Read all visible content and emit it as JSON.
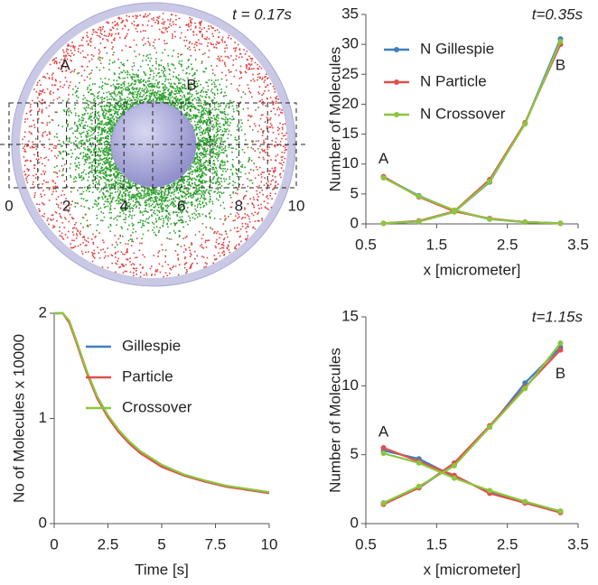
{
  "snapshot": {
    "title": "t = 0.17s",
    "labels": [
      "A",
      "B"
    ],
    "ticks": [
      0,
      2,
      4,
      6,
      8,
      10
    ]
  },
  "chart_data": [
    {
      "type": "line",
      "title": "t=0.35s",
      "xlabel": "x [micrometer]",
      "ylabel": "Number of Molecules",
      "x": [
        0.75,
        1.25,
        1.75,
        2.25,
        2.75,
        3.25
      ],
      "xlim": [
        0.5,
        3.5
      ],
      "xticks": [
        0.5,
        1.5,
        2.5,
        3.5
      ],
      "ylim": [
        0,
        35
      ],
      "yticks": [
        0,
        5,
        10,
        15,
        20,
        25,
        30,
        35
      ],
      "legend": "upper-left",
      "markers": true,
      "annotations": [
        "A",
        "B"
      ],
      "series": [
        {
          "name": "N Gillespie",
          "color": "#3f7fc0",
          "values": [
            7.8,
            4.7,
            2.2,
            0.8,
            0.3,
            0.1
          ],
          "values_b": [
            0.1,
            0.4,
            2.0,
            7.0,
            16.8,
            30.9
          ]
        },
        {
          "name": "N Particle",
          "color": "#e0504a",
          "values": [
            7.9,
            4.5,
            2.1,
            0.9,
            0.3,
            0.1
          ],
          "values_b": [
            0.1,
            0.5,
            2.1,
            7.4,
            16.9,
            30.0
          ]
        },
        {
          "name": "N Crossover",
          "color": "#8cc63f",
          "values": [
            7.7,
            4.6,
            2.3,
            0.8,
            0.3,
            0.1
          ],
          "values_b": [
            0.1,
            0.4,
            2.0,
            7.1,
            16.7,
            30.5
          ]
        }
      ]
    },
    {
      "type": "line",
      "xlabel": "Time [s]",
      "ylabel": "No of Molecules x 10000",
      "x": [
        0,
        0.4,
        0.7,
        1,
        1.5,
        2,
        2.5,
        3,
        3.5,
        4,
        5,
        6,
        7,
        8,
        9,
        10
      ],
      "xlim": [
        0,
        10
      ],
      "xticks": [
        0,
        2.5,
        5,
        7.5,
        10
      ],
      "ylim": [
        0,
        2
      ],
      "yticks": [
        0,
        1,
        2
      ],
      "legend": "center",
      "markers": false,
      "series": [
        {
          "name": "Gillespie",
          "color": "#3f7fc0",
          "values": [
            2.0,
            2.0,
            1.92,
            1.75,
            1.45,
            1.2,
            1.02,
            0.88,
            0.77,
            0.68,
            0.55,
            0.46,
            0.4,
            0.36,
            0.32,
            0.29
          ]
        },
        {
          "name": "Particle",
          "color": "#e0504a",
          "values": [
            2.0,
            2.0,
            1.91,
            1.74,
            1.44,
            1.19,
            1.01,
            0.87,
            0.76,
            0.67,
            0.54,
            0.46,
            0.4,
            0.35,
            0.32,
            0.29
          ]
        },
        {
          "name": "Crossover",
          "color": "#8cc63f",
          "values": [
            2.0,
            2.0,
            1.93,
            1.76,
            1.46,
            1.21,
            1.03,
            0.89,
            0.78,
            0.69,
            0.56,
            0.47,
            0.41,
            0.36,
            0.33,
            0.3
          ]
        }
      ]
    },
    {
      "type": "line",
      "title": "t=1.15s",
      "xlabel": "x [micrometer]",
      "ylabel": "Number of Molecules",
      "x": [
        0.75,
        1.25,
        1.75,
        2.25,
        2.75,
        3.25
      ],
      "xlim": [
        0.5,
        3.5
      ],
      "xticks": [
        0.5,
        1.5,
        2.5,
        3.5
      ],
      "ylim": [
        0,
        15
      ],
      "yticks": [
        0,
        5,
        10,
        15
      ],
      "markers": true,
      "annotations": [
        "A",
        "B"
      ],
      "series": [
        {
          "color": "#3f7fc0",
          "values": [
            5.3,
            4.7,
            3.4,
            2.3,
            1.5,
            0.9
          ],
          "values_b": [
            1.5,
            2.6,
            4.3,
            7.0,
            10.2,
            12.8
          ]
        },
        {
          "color": "#e0504a",
          "values": [
            5.5,
            4.5,
            3.5,
            2.2,
            1.5,
            0.8
          ],
          "values_b": [
            1.4,
            2.6,
            4.4,
            7.1,
            9.9,
            12.6
          ]
        },
        {
          "color": "#8cc63f",
          "values": [
            5.1,
            4.4,
            3.3,
            2.4,
            1.6,
            0.9
          ],
          "values_b": [
            1.5,
            2.7,
            4.2,
            7.0,
            9.8,
            13.1
          ]
        }
      ]
    }
  ]
}
